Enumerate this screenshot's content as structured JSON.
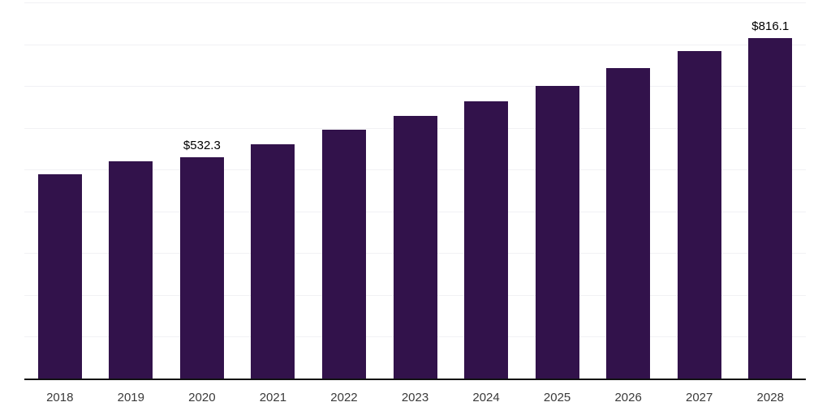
{
  "chart_data": {
    "type": "bar",
    "title": "",
    "categories": [
      "2018",
      "2019",
      "2020",
      "2021",
      "2022",
      "2023",
      "2024",
      "2025",
      "2026",
      "2027",
      "2028"
    ],
    "values": [
      490,
      522,
      532.3,
      563,
      598,
      631,
      666,
      703,
      744,
      785,
      816.1
    ],
    "data_labels": [
      "",
      "",
      "$532.3",
      "",
      "",
      "",
      "",
      "",
      "",
      "",
      "$816.1"
    ],
    "xlabel": "",
    "ylabel": "",
    "ylim": [
      0,
      900
    ],
    "gridline_step": 100,
    "grid": true,
    "y_tick_labels_visible": false,
    "legend": "none",
    "colors": {
      "bar": "#32124B",
      "gridline": "#F1F1F4",
      "axis_line": "#111111",
      "tick_label": "#3A3A3A",
      "data_label": "#000000",
      "background": "#FFFFFF"
    }
  }
}
